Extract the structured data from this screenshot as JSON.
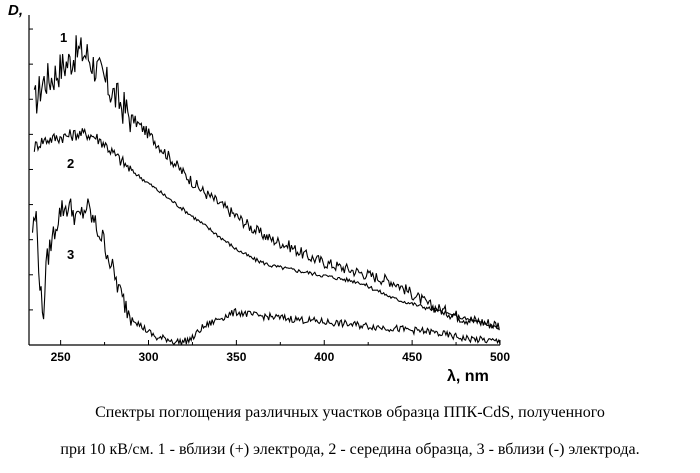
{
  "chart_data": {
    "type": "line",
    "ylabel": "D,",
    "xlabel": "λ, nm",
    "xlim": [
      232,
      500
    ],
    "ylim": [
      0,
      1
    ],
    "xticks": [
      250,
      300,
      350,
      400,
      450,
      500
    ],
    "grid": false,
    "series": [
      {
        "name": "1",
        "x": [
          235,
          240,
          245,
          250,
          255,
          260,
          265,
          270,
          275,
          280,
          290,
          300,
          310,
          320,
          330,
          340,
          350,
          360,
          370,
          380,
          390,
          400,
          420,
          440,
          460,
          480,
          500
        ],
        "values": [
          0.73,
          0.8,
          0.81,
          0.84,
          0.86,
          0.89,
          0.88,
          0.84,
          0.8,
          0.76,
          0.69,
          0.64,
          0.58,
          0.52,
          0.47,
          0.43,
          0.39,
          0.35,
          0.32,
          0.3,
          0.27,
          0.25,
          0.22,
          0.19,
          0.12,
          0.08,
          0.06
        ]
      },
      {
        "name": "2",
        "x": [
          235,
          240,
          250,
          260,
          265,
          270,
          275,
          280,
          290,
          300,
          310,
          320,
          330,
          340,
          350,
          360,
          370,
          380,
          390,
          400,
          420,
          440,
          460,
          480,
          500
        ],
        "values": [
          0.6,
          0.62,
          0.63,
          0.64,
          0.64,
          0.63,
          0.61,
          0.58,
          0.53,
          0.49,
          0.45,
          0.41,
          0.37,
          0.33,
          0.29,
          0.26,
          0.24,
          0.23,
          0.22,
          0.21,
          0.19,
          0.14,
          0.11,
          0.08,
          0.05
        ]
      },
      {
        "name": "3",
        "x": [
          234,
          236,
          238,
          240,
          242,
          245,
          250,
          255,
          260,
          265,
          270,
          275,
          280,
          285,
          290,
          295,
          300,
          305,
          310,
          315,
          320,
          325,
          330,
          340,
          350,
          360,
          380,
          400,
          420,
          440,
          460,
          480,
          500
        ],
        "values": [
          0.35,
          0.4,
          0.2,
          0.08,
          0.25,
          0.32,
          0.41,
          0.42,
          0.38,
          0.42,
          0.36,
          0.31,
          0.22,
          0.14,
          0.09,
          0.06,
          0.04,
          0.02,
          0.02,
          0.01,
          0.01,
          0.02,
          0.05,
          0.08,
          0.1,
          0.09,
          0.08,
          0.07,
          0.06,
          0.05,
          0.04,
          0.02,
          0.01
        ]
      }
    ]
  },
  "labels": {
    "y_axis": "D,",
    "x_axis": "λ, nm",
    "series_1": "1",
    "series_2": "2",
    "series_3": "3"
  },
  "caption": {
    "line1": "Спектры поглощения различных участков образца ППК-CdS, полученного",
    "line2": "при 10 кВ/см. 1 - вблизи (+) электрода, 2 - середина образца, 3 - вблизи (-) электрода."
  },
  "colors": {
    "line": "#000000",
    "background": "#ffffff"
  }
}
